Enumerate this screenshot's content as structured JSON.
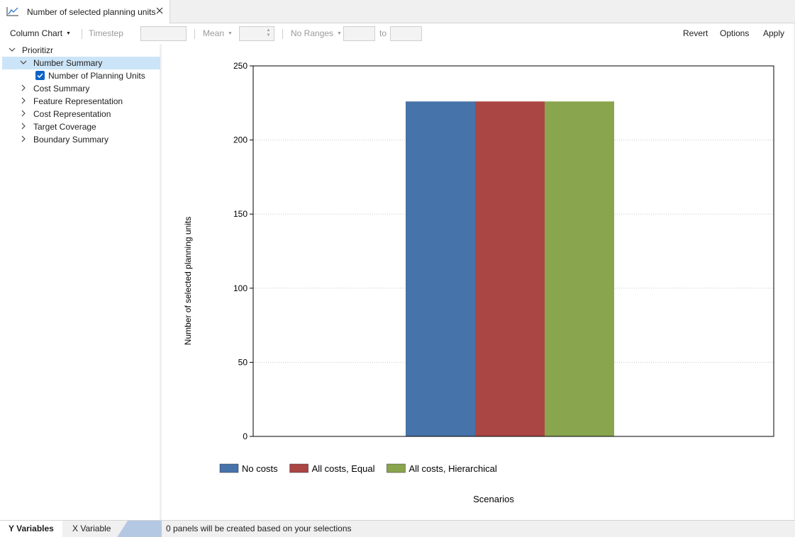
{
  "tab": {
    "title": "Number of selected planning units",
    "icon": "line-chart-icon"
  },
  "toolbar": {
    "chart_type": "Column Chart",
    "timestep_label": "Timestep",
    "aggregation": "Mean",
    "ranges": "No Ranges",
    "to_label": "to",
    "revert": "Revert",
    "options": "Options",
    "apply": "Apply"
  },
  "tree": {
    "root": "Prioritizr",
    "items": [
      {
        "label": "Number Summary",
        "expanded": true,
        "selected": true
      },
      {
        "label": "Number of Planning Units",
        "checked": true
      },
      {
        "label": "Cost Summary",
        "expanded": false
      },
      {
        "label": "Feature Representation",
        "expanded": false
      },
      {
        "label": "Cost Representation",
        "expanded": false
      },
      {
        "label": "Target Coverage",
        "expanded": false
      },
      {
        "label": "Boundary Summary",
        "expanded": false
      }
    ]
  },
  "bottom": {
    "tab_y": "Y Variables",
    "tab_x": "X Variable",
    "status": "0 panels will be created based on your selections"
  },
  "colors": {
    "accent": "#0a64c8",
    "selection": "#cce4f7"
  },
  "chart_data": {
    "type": "bar",
    "categories": [
      ""
    ],
    "series": [
      {
        "name": "No costs",
        "values": [
          226
        ],
        "color": "#4673a9"
      },
      {
        "name": "All costs, Equal",
        "values": [
          226
        ],
        "color": "#aa4644"
      },
      {
        "name": "All costs, Hierarchical",
        "values": [
          226
        ],
        "color": "#89a54e"
      }
    ],
    "title": "",
    "xlabel": "Scenarios",
    "ylabel": "Number of selected planning units",
    "ylim": [
      0,
      250
    ],
    "yticks": [
      0,
      50,
      100,
      150,
      200,
      250
    ],
    "grid": true,
    "legend": "bottom-left"
  }
}
